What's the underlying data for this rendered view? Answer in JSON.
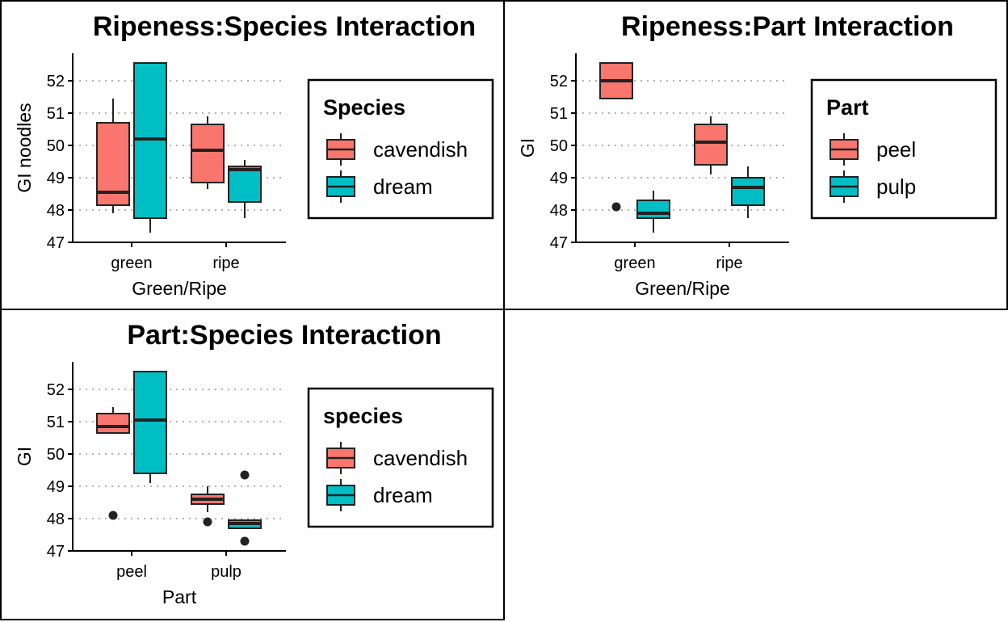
{
  "colors": {
    "cavendish": "#F8766D",
    "dream": "#00BFC4",
    "peel": "#F8766D",
    "pulp": "#00BFC4"
  },
  "chart_data": [
    {
      "type": "boxplot",
      "title": "Ripeness:Species Interaction",
      "xlabel": "Green/Ripe",
      "ylabel": "GI noodles",
      "categories": [
        "green",
        "ripe"
      ],
      "ylim": [
        47,
        52.8
      ],
      "yticks": [
        47,
        48,
        49,
        50,
        51,
        52
      ],
      "grid": "horizontal dotted",
      "legend": {
        "title": "Species",
        "position": "right",
        "entries": [
          "cavendish",
          "dream"
        ]
      },
      "series": [
        {
          "name": "cavendish",
          "color_key": "cavendish",
          "boxes": [
            {
              "category": "green",
              "whisker_low": 47.9,
              "q1": 48.15,
              "median": 48.55,
              "q3": 50.7,
              "whisker_high": 51.45,
              "outliers": []
            },
            {
              "category": "ripe",
              "whisker_low": 48.65,
              "q1": 48.85,
              "median": 49.85,
              "q3": 50.65,
              "whisker_high": 50.9,
              "outliers": []
            }
          ]
        },
        {
          "name": "dream",
          "color_key": "dream",
          "boxes": [
            {
              "category": "green",
              "whisker_low": 47.3,
              "q1": 47.75,
              "median": 50.2,
              "q3": 52.55,
              "whisker_high": 52.55,
              "outliers": []
            },
            {
              "category": "ripe",
              "whisker_low": 47.75,
              "q1": 48.25,
              "median": 49.25,
              "q3": 49.35,
              "whisker_high": 49.55,
              "outliers": []
            }
          ]
        }
      ]
    },
    {
      "type": "boxplot",
      "title": "Ripeness:Part Interaction",
      "xlabel": "Green/Ripe",
      "ylabel": "GI",
      "categories": [
        "green",
        "ripe"
      ],
      "ylim": [
        47,
        52.8
      ],
      "yticks": [
        47,
        48,
        49,
        50,
        51,
        52
      ],
      "grid": "horizontal dotted",
      "legend": {
        "title": "Part",
        "position": "right",
        "entries": [
          "peel",
          "pulp"
        ]
      },
      "series": [
        {
          "name": "peel",
          "color_key": "peel",
          "boxes": [
            {
              "category": "green",
              "whisker_low": 51.45,
              "q1": 51.45,
              "median": 52.0,
              "q3": 52.55,
              "whisker_high": 52.55,
              "outliers": [
                48.1
              ]
            },
            {
              "category": "ripe",
              "whisker_low": 49.1,
              "q1": 49.4,
              "median": 50.1,
              "q3": 50.65,
              "whisker_high": 50.9,
              "outliers": []
            }
          ]
        },
        {
          "name": "pulp",
          "color_key": "pulp",
          "boxes": [
            {
              "category": "green",
              "whisker_low": 47.3,
              "q1": 47.75,
              "median": 47.9,
              "q3": 48.3,
              "whisker_high": 48.6,
              "outliers": []
            },
            {
              "category": "ripe",
              "whisker_low": 47.75,
              "q1": 48.15,
              "median": 48.7,
              "q3": 49.0,
              "whisker_high": 49.35,
              "outliers": []
            }
          ]
        }
      ]
    },
    {
      "type": "boxplot",
      "title": "Part:Species Interaction",
      "xlabel": "Part",
      "ylabel": "GI",
      "categories": [
        "peel",
        "pulp"
      ],
      "ylim": [
        47,
        52.8
      ],
      "yticks": [
        47,
        48,
        49,
        50,
        51,
        52
      ],
      "grid": "horizontal dotted",
      "legend": {
        "title": "species",
        "position": "right",
        "entries": [
          "cavendish",
          "dream"
        ]
      },
      "series": [
        {
          "name": "cavendish",
          "color_key": "cavendish",
          "boxes": [
            {
              "category": "peel",
              "whisker_low": 50.65,
              "q1": 50.65,
              "median": 50.85,
              "q3": 51.25,
              "whisker_high": 51.45,
              "outliers": [
                48.1
              ]
            },
            {
              "category": "pulp",
              "whisker_low": 48.2,
              "q1": 48.45,
              "median": 48.6,
              "q3": 48.75,
              "whisker_high": 49.0,
              "outliers": [
                47.9
              ]
            }
          ]
        },
        {
          "name": "dream",
          "color_key": "dream",
          "boxes": [
            {
              "category": "peel",
              "whisker_low": 49.1,
              "q1": 49.4,
              "median": 51.05,
              "q3": 52.55,
              "whisker_high": 52.55,
              "outliers": []
            },
            {
              "category": "pulp",
              "whisker_low": 47.7,
              "q1": 47.7,
              "median": 47.85,
              "q3": 47.95,
              "whisker_high": 47.95,
              "outliers": [
                49.35,
                47.3
              ]
            }
          ]
        }
      ]
    }
  ]
}
